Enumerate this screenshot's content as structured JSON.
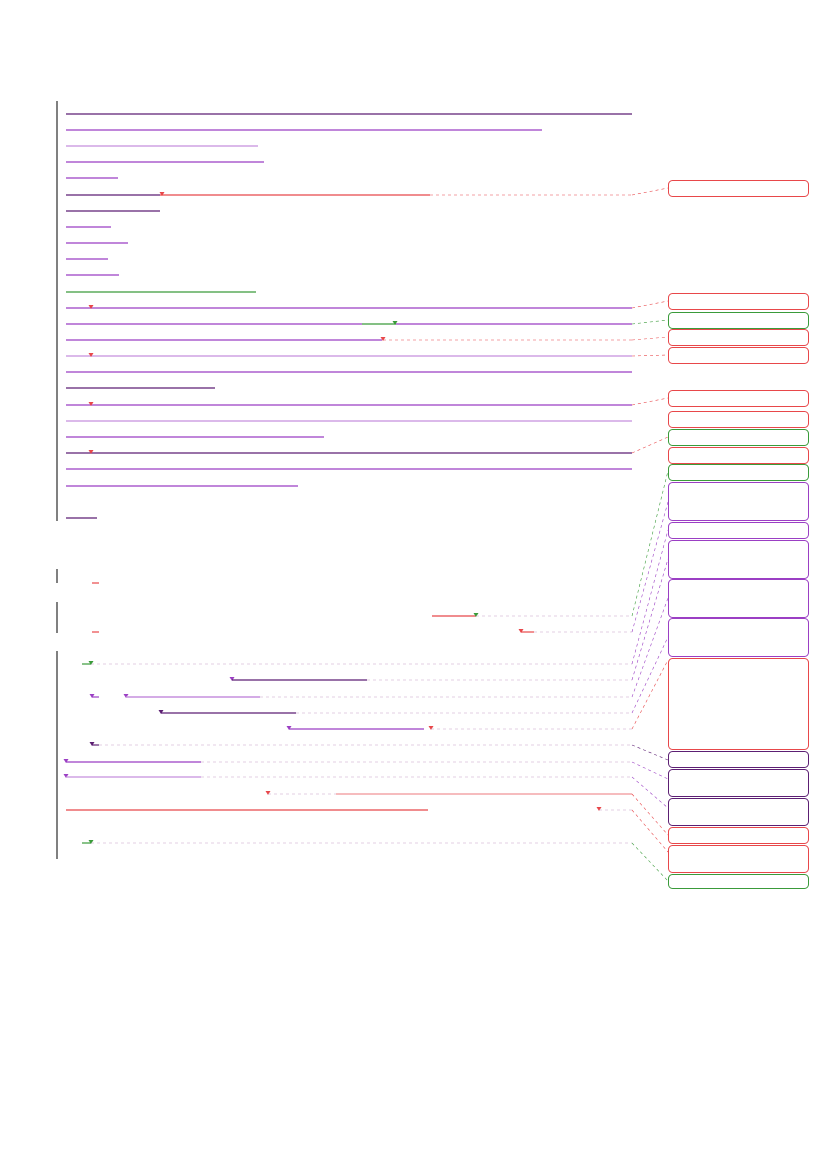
{
  "document": {
    "kind": "redlined-document-page",
    "annotation_colors": {
      "deletion": "#e8474a",
      "insertion": "#3a9b3a",
      "formatting": "#9b3fc4",
      "underline_dark": "#5c1f73",
      "underline_light": "#c58fdd",
      "connector": "#c8a0c8"
    },
    "text_lines": [],
    "comment_balloons": []
  }
}
